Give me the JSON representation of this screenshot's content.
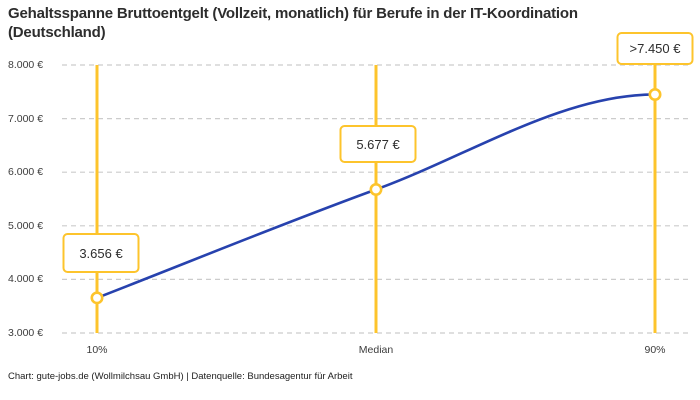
{
  "title": "Gehaltsspanne Bruttoentgelt (Vollzeit, monatlich) für Berufe in der IT-Koordination (Deutschland)",
  "footer": "Chart: gute-jobs.de (Wollmilchsau GmbH) | Datenquelle: Bundesagentur für Arbeit",
  "colors": {
    "accent_yellow": "#fdc42c",
    "line_blue": "#2742ae",
    "grid_gray": "#cccccc",
    "text_dark": "#2d2d2d",
    "tick_text": "#3c3c3c"
  },
  "chart_data": {
    "type": "line",
    "title": "Gehaltsspanne Bruttoentgelt (Vollzeit, monatlich) für Berufe in der IT-Koordination (Deutschland)",
    "categories": [
      "10%",
      "Median",
      "90%"
    ],
    "values": [
      3656,
      5677,
      7450
    ],
    "point_labels": [
      "3.656 €",
      "5.677 €",
      ">7.450 €"
    ],
    "y_ticks": [
      3000,
      4000,
      5000,
      6000,
      7000,
      8000
    ],
    "y_tick_labels": [
      "3.000 €",
      "4.000 €",
      "5.000 €",
      "6.000 €",
      "7.000 €",
      "8.000 €"
    ],
    "ylim": [
      3000,
      8000
    ],
    "unit": "€",
    "grid": "horizontal-dashed",
    "legend": "none",
    "marker_style": "open-circle-yellow",
    "guide_lines": "vertical-yellow-at-each-category",
    "source": "Bundesagentur für Arbeit",
    "chart_credit": "gute-jobs.de (Wollmilchsau GmbH)"
  }
}
